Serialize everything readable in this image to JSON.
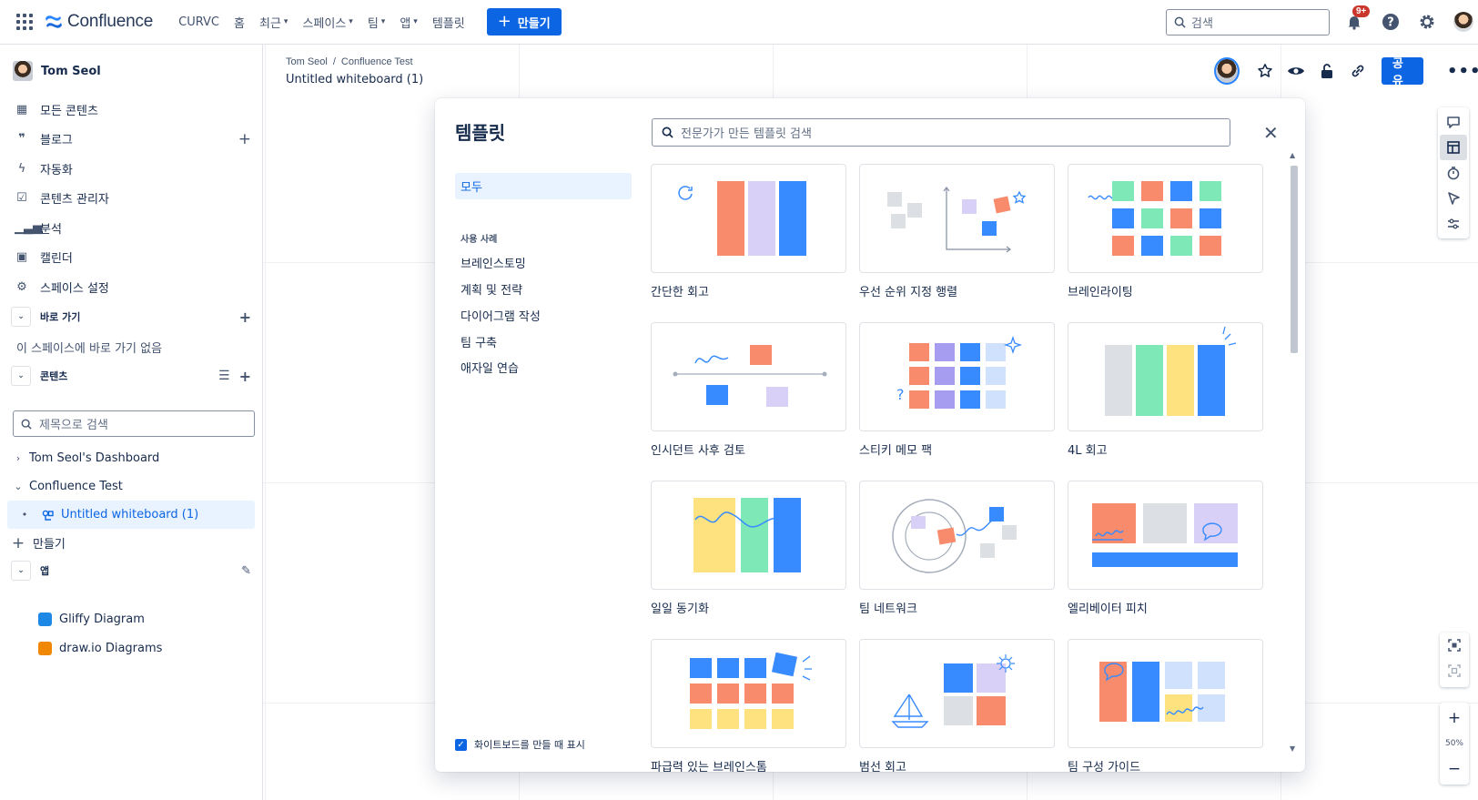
{
  "topnav": {
    "logo_text": "Confluence",
    "items": [
      {
        "label": "CURVC",
        "chevron": false
      },
      {
        "label": "홈",
        "chevron": false
      },
      {
        "label": "최근",
        "chevron": true
      },
      {
        "label": "스페이스",
        "chevron": true
      },
      {
        "label": "팀",
        "chevron": true
      },
      {
        "label": "앱",
        "chevron": true
      },
      {
        "label": "템플릿",
        "chevron": false
      }
    ],
    "create_label": "만들기",
    "search_placeholder": "검색",
    "notification_badge": "9+"
  },
  "sidebar": {
    "user_name": "Tom Seol",
    "items": [
      {
        "icon": "grid-icon",
        "label": "모든 콘텐츠",
        "plus": false
      },
      {
        "icon": "quote-icon",
        "label": "블로그",
        "plus": true
      },
      {
        "icon": "bolt-icon",
        "label": "자동화",
        "plus": false
      },
      {
        "icon": "checklist-icon",
        "label": "콘텐츠 관리자",
        "plus": false
      },
      {
        "icon": "bar-chart-icon",
        "label": "분석",
        "plus": false
      },
      {
        "icon": "calendar-icon",
        "label": "캘린더",
        "plus": false
      },
      {
        "icon": "gear-icon",
        "label": "스페이스 설정",
        "plus": false
      }
    ],
    "shortcuts_head": "바로 가기",
    "shortcuts_empty": "이 스페이스에 바로 가기 없음",
    "content_head": "콘텐츠",
    "title_search_placeholder": "제목으로 검색",
    "tree": [
      {
        "label": "Tom Seol's Dashboard",
        "caret": "›"
      },
      {
        "label": "Confluence Test",
        "caret": "⌄"
      },
      {
        "label": "Untitled whiteboard (1)",
        "caret": "•"
      }
    ],
    "create_label": "만들기",
    "apps_head": "앱",
    "apps": [
      {
        "label": "Gliffy Diagram",
        "color": "#1e88e5"
      },
      {
        "label": "draw.io Diagrams",
        "color": "#f08705"
      }
    ]
  },
  "page": {
    "breadcrumb": [
      "Tom Seol",
      "Confluence Test"
    ],
    "title": "Untitled whiteboard (1)",
    "share_label": "공유",
    "zoom_level": "50%"
  },
  "modal": {
    "title": "템플릿",
    "search_placeholder": "전문가가 만든 템플릿 검색",
    "category_all": "모두",
    "category_head": "사용 사례",
    "categories": [
      "브레인스토밍",
      "계획 및 전략",
      "다이어그램 작성",
      "팀 구축",
      "애자일 연습"
    ],
    "show_on_create": "화이트보드를 만들 때 표시",
    "templates": [
      "간단한 회고",
      "우선 순위 지정 행렬",
      "브레인라이팅",
      "인시던트 사후 검토",
      "스티키 메모 팩",
      "4L 회고",
      "일일 동기화",
      "팀 네트워크",
      "엘리베이터 피치",
      "파급력 있는 브레인스톰",
      "범선 회고",
      "팀 구성 가이드"
    ]
  },
  "colors": {
    "brand_blue": "#0c66e4",
    "sticky_orange": "#f88b6c",
    "sticky_blue": "#388bff",
    "sticky_purple": "#d8d0f7",
    "sticky_green": "#7ee8b6",
    "sticky_yellow": "#fde27f",
    "sticky_gray": "#dcdfe4"
  }
}
